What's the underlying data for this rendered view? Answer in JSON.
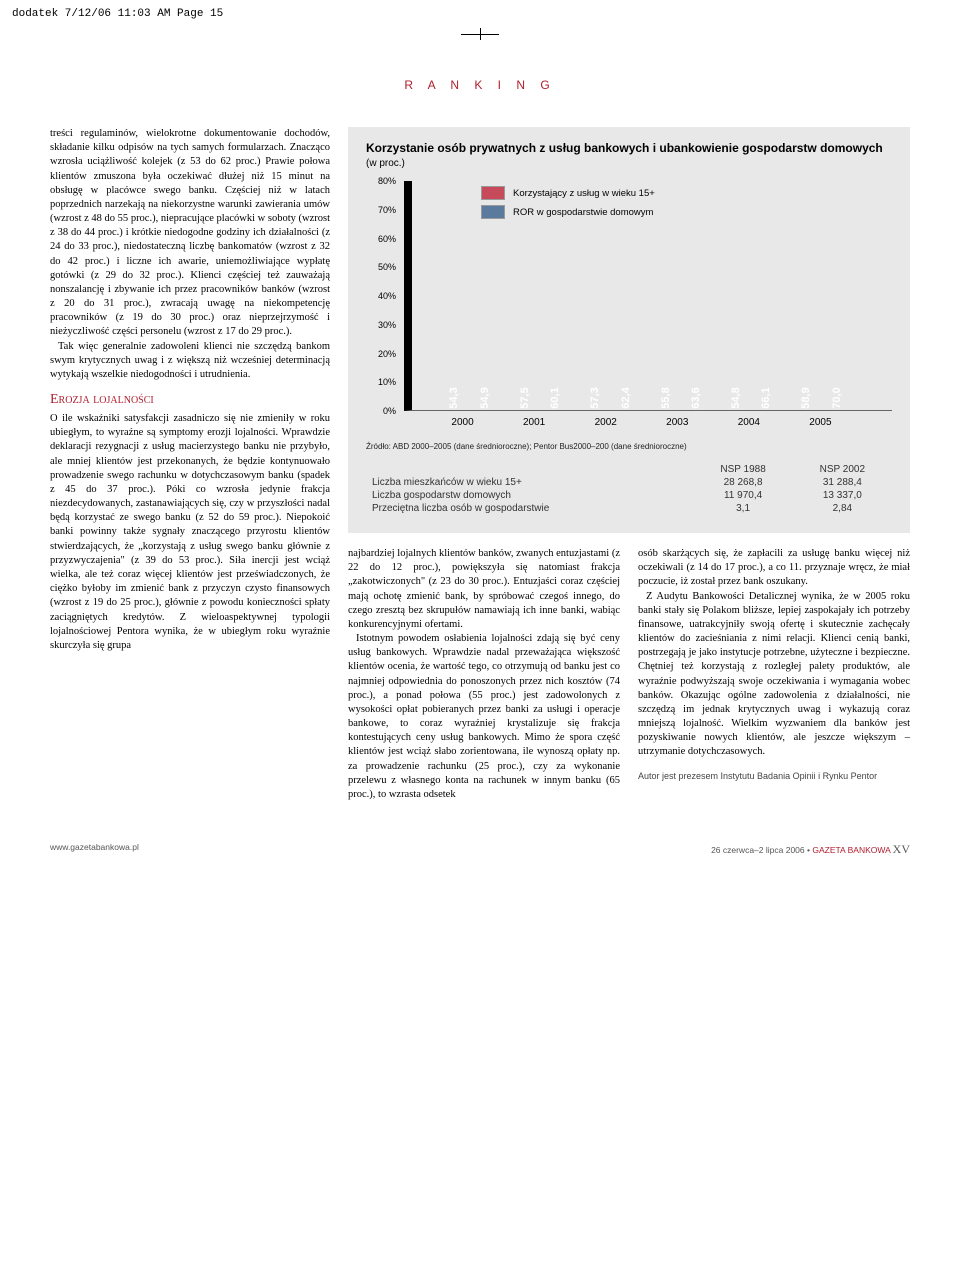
{
  "print_mark": "dodatek  7/12/06  11:03 AM  Page 15",
  "header": "R A N K I N G",
  "left_text": {
    "p1": "treści regulaminów, wielokrotne dokumentowanie dochodów, składanie kilku odpisów na tych samych formularzach. Znacząco wzrosła uciążliwość kolejek (z 53 do 62 proc.) Prawie połowa klientów zmuszona była oczekiwać dłużej niż 15 minut na obsługę w placówce swego banku. Częściej niż w latach poprzednich narzekają na niekorzystne warunki zawierania umów (wzrost z 48 do 55 proc.), niepracujące placówki w soboty (wzrost z 38 do 44 proc.) i krótkie niedogodne godziny ich działalności (z 24 do 33 proc.), niedostateczną liczbę bankomatów (wzrost z 32 do 42 proc.) i liczne ich awarie, uniemożliwiające wypłatę gotówki (z 29 do 32 proc.). Klienci częściej też zauważają nonszalancję i zbywanie ich przez pracowników banków (wzrost z 20 do 31 proc.), zwracają uwagę na niekompetencję pracowników (z 19 do 30 proc.) oraz nieprzejrzymość i nieżyczliwość części personelu (wzrost z 17 do 29 proc.).",
    "p2": "Tak więc generalnie zadowoleni klienci nie szczędzą bankom swym krytycznych uwag i z większą niż wcześniej determinacją wytykają wszelkie niedogodności i utrudnienia.",
    "section": "Erozja lojalności",
    "p3": "O ile wskaźniki satysfakcji zasadniczo się nie zmieniły w roku ubiegłym, to wyraźne są symptomy erozji lojalności. Wprawdzie deklaracji rezygnacji z usług macierzystego banku nie przybyło, ale mniej klientów jest przekonanych, że będzie kontynuowało prowadzenie swego rachunku w dotychczasowym banku (spadek z 45 do 37 proc.). Póki co wzrosła jedynie frakcja niezdecydowanych, zastanawiających się, czy w przyszłości nadal będą korzystać ze swego banku (z 52 do 59 proc.). Niepokoić banki powinny także sygnały znaczącego przyrostu klientów stwierdzających, że „korzystają z usług swego banku głównie z przyzwyczajenia\" (z 39 do 53 proc.). Siła inercji jest wciąż wielka, ale też coraz więcej klientów jest przeświadczonych, że ciężko byłoby im zmienić bank z przyczyn czysto finansowych (wzrost z 19 do 25 proc.), głównie z powodu konieczności spłaty zaciągniętych kredytów. Z wieloaspektywnej typologii lojalnościowej Pentora wynika, że w ubiegłym roku wyraźnie skurczyła się grupa"
  },
  "chart": {
    "title": "Korzystanie osób prywatnych z usług bankowych i ubankowienie gospodarstw domowych",
    "title_suffix": "(w proc.)",
    "legend": {
      "a": {
        "label": "Korzystający z usług w wieku 15+",
        "color": "#c74a5a"
      },
      "b": {
        "label": "ROR w gospodarstwie domowym",
        "color": "#5a7a9e"
      }
    },
    "type": "bar",
    "y": {
      "min": 0,
      "max": 80,
      "step": 10,
      "unit": "%"
    },
    "years": [
      "2000",
      "2001",
      "2002",
      "2003",
      "2004",
      "2005"
    ],
    "series_a": [
      "54,3",
      "57,5",
      "57,3",
      "55,8",
      "54,8",
      "58,9"
    ],
    "series_b": [
      "54,9",
      "60,1",
      "62,4",
      "63,6",
      "66,1",
      "70,0"
    ],
    "series_a_num": [
      54.3,
      57.5,
      57.3,
      55.8,
      54.8,
      58.9
    ],
    "series_b_num": [
      54.9,
      60.1,
      62.4,
      63.6,
      66.1,
      70.0
    ],
    "bar_a_color": "#c74a5a",
    "bar_b_color": "#5a7a9e",
    "bg_color": "#e8e8e8",
    "black_border": "#000000",
    "source": "Źródło: ABD 2000–2005 (dane średnioroczne); Pentor Bus2000–200 (dane średnioroczne)",
    "fontsize_label": 11
  },
  "table": {
    "col_h": [
      "",
      "NSP 1988",
      "NSP 2002"
    ],
    "rows": [
      [
        "Liczba mieszkańców w wieku 15+",
        "28 268,8",
        "31 288,4"
      ],
      [
        "Liczba gospodarstw domowych",
        "11 970,4",
        "13 337,0"
      ],
      [
        "Przeciętna liczba osób w gospodarstwie",
        "3,1",
        "2,84"
      ]
    ]
  },
  "cols": {
    "c1": "najbardziej lojalnych klientów banków, zwanych entuzjastami (z 22 do 12 proc.), powiększyła się natomiast frakcja „zakotwiczonych\" (z 23 do 30 proc.). Entuzjaści coraz częściej mają ochotę zmienić bank, by spróbować czegoś innego, do czego zresztą bez skrupułów namawiają ich inne banki, wabiąc konkurencyjnymi ofertami.",
    "c1b": "Istotnym powodem osłabienia lojalności zdają się być ceny usług bankowych. Wprawdzie nadal przeważająca większość klientów ocenia, że wartość tego, co otrzymują od banku jest co najmniej odpowiednia do ponoszonych przez nich kosztów (74 proc.), a ponad połowa (55 proc.) jest zadowolonych z wysokości opłat pobieranych przez banki za usługi i operacje bankowe, to coraz wyraźniej krystalizuje się frakcja kontestujących ceny usług bankowych. Mimo że spora część klientów jest wciąż słabo zorientowana, ile wynoszą opłaty np. za prowadzenie rachunku (25 proc.), czy za wykonanie przelewu z własnego konta na rachunek w innym banku (65 proc.), to wzrasta odsetek",
    "c2": "osób skarżących się, że zapłacili za usługę banku więcej niż oczekiwali (z 14 do 17 proc.), a co 11. przyznaje wręcz, że miał poczucie, iż został przez bank oszukany.",
    "c2b": "Z Audytu Bankowości Detalicznej wynika, że w 2005 roku banki stały się Polakom bliższe, lepiej zaspokajały ich potrzeby finansowe, uatrakcyjniły swoją ofertę i skutecznie zachęcały klientów do zacieśniania z nimi relacji. Klienci cenią banki, postrzegają je jako instytucje potrzebne, użyteczne i bezpieczne. Chętniej też korzystają z rozległej palety produktów, ale wyraźnie podwyższają swoje oczekiwania i wymagania wobec banków. Okazując ogólne zadowolenia z działalności, nie szczędzą im jednak krytycznych uwag i wykazują coraz mniejszą lojalność. Wielkim wyzwaniem dla banków jest pozyskiwanie nowych klientów, ale jeszcze większym – utrzymanie dotychczasowych.",
    "author": "Autor jest prezesem Instytutu Badania Opinii i Rynku Pentor"
  },
  "footer": {
    "left": "www.gazetabankowa.pl",
    "date": "26 czerwca–2 lipca 2006 •",
    "brand": "GAZETA BANKOWA",
    "page": "XV"
  },
  "colors": {
    "red": "#b0202f",
    "grey_bg": "#e8e8e8"
  }
}
